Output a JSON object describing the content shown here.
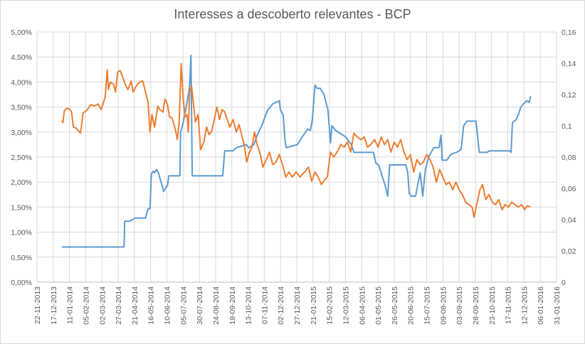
{
  "chart_data": {
    "type": "line",
    "title": "Interesses a descoberto relevantes - BCP",
    "y_left": {
      "ticks": [
        "0,00%",
        "0,50%",
        "1,00%",
        "1,50%",
        "2,00%",
        "2,50%",
        "3,00%",
        "3,50%",
        "4,00%",
        "4,50%",
        "5,00%"
      ],
      "range": [
        0,
        5
      ]
    },
    "y_right": {
      "ticks": [
        "0",
        "0,02",
        "0,04",
        "0,06",
        "0,08",
        "0,1",
        "0,12",
        "0,14",
        "0,16"
      ],
      "range": [
        0,
        0.16
      ]
    },
    "x_ticks": [
      "22-11-2013",
      "17-12-2013",
      "11-01-2014",
      "05-02-2014",
      "02-03-2014",
      "27-03-2014",
      "21-04-2014",
      "16-05-2014",
      "10-06-2014",
      "05-07-2014",
      "30-07-2014",
      "24-08-2014",
      "18-09-2014",
      "13-10-2014",
      "07-11-2014",
      "02-12-2014",
      "27-12-2014",
      "21-01-2015",
      "15-02-2015",
      "12-03-2015",
      "06-04-2015",
      "01-05-2015",
      "26-05-2015",
      "20-06-2015",
      "15-07-2015",
      "09-08-2015",
      "03-09-2015",
      "28-09-2015",
      "23-10-2015",
      "17-11-2015",
      "12-12-2015",
      "06-01-2016",
      "31-01-2016"
    ],
    "grid": true,
    "series": [
      {
        "axis": "right",
        "color": "#5b9bd5",
        "points": [
          [
            "2013-12-30",
            0.0225
          ],
          [
            "2014-04-05",
            0.0225
          ],
          [
            "2014-04-06",
            0.039
          ],
          [
            "2014-04-14",
            0.039
          ],
          [
            "2014-04-22",
            0.041
          ],
          [
            "2014-05-08",
            0.041
          ],
          [
            "2014-05-12",
            0.047
          ],
          [
            "2014-05-15",
            0.047
          ],
          [
            "2014-05-17",
            0.069
          ],
          [
            "2014-05-20",
            0.071
          ],
          [
            "2014-05-22",
            0.07
          ],
          [
            "2014-05-25",
            0.072
          ],
          [
            "2014-05-28",
            0.07
          ],
          [
            "2014-06-01",
            0.064
          ],
          [
            "2014-06-05",
            0.058
          ],
          [
            "2014-06-11",
            0.062
          ],
          [
            "2014-06-13",
            0.068
          ],
          [
            "2014-06-30",
            0.068
          ],
          [
            "2014-07-01",
            0.096
          ],
          [
            "2014-07-04",
            0.1
          ],
          [
            "2014-07-09",
            0.11
          ],
          [
            "2014-07-15",
            0.125
          ],
          [
            "2014-07-17",
            0.145
          ],
          [
            "2014-07-19",
            0.068
          ],
          [
            "2014-09-04",
            0.068
          ],
          [
            "2014-09-07",
            0.084
          ],
          [
            "2014-09-20",
            0.084
          ],
          [
            "2014-09-25",
            0.086
          ],
          [
            "2014-10-10",
            0.088
          ],
          [
            "2014-10-14",
            0.086
          ],
          [
            "2014-10-22",
            0.088
          ],
          [
            "2014-10-27",
            0.094
          ],
          [
            "2014-11-03",
            0.1
          ],
          [
            "2014-11-12",
            0.11
          ],
          [
            "2014-11-20",
            0.114
          ],
          [
            "2014-11-30",
            0.116
          ],
          [
            "2014-12-02",
            0.11
          ],
          [
            "2014-12-06",
            0.107
          ],
          [
            "2014-12-09",
            0.09
          ],
          [
            "2014-12-11",
            0.086
          ],
          [
            "2014-12-20",
            0.087
          ],
          [
            "2014-12-28",
            0.088
          ],
          [
            "2015-01-03",
            0.092
          ],
          [
            "2015-01-08",
            0.095
          ],
          [
            "2015-01-13",
            0.098
          ],
          [
            "2015-01-17",
            0.097
          ],
          [
            "2015-01-20",
            0.104
          ],
          [
            "2015-01-24",
            0.126
          ],
          [
            "2015-01-27",
            0.124
          ],
          [
            "2015-02-01",
            0.124
          ],
          [
            "2015-02-07",
            0.12
          ],
          [
            "2015-02-13",
            0.11
          ],
          [
            "2015-02-15",
            0.1
          ],
          [
            "2015-02-17",
            0.089
          ],
          [
            "2015-02-19",
            0.1
          ],
          [
            "2015-02-25",
            0.097
          ],
          [
            "2015-03-12",
            0.093
          ],
          [
            "2015-03-21",
            0.088
          ],
          [
            "2015-03-25",
            0.083
          ],
          [
            "2015-04-24",
            0.083
          ],
          [
            "2015-04-28",
            0.076
          ],
          [
            "2015-05-02",
            0.075
          ],
          [
            "2015-05-12",
            0.062
          ],
          [
            "2015-05-16",
            0.055
          ],
          [
            "2015-05-19",
            0.075
          ],
          [
            "2015-06-13",
            0.075
          ],
          [
            "2015-06-16",
            0.07
          ],
          [
            "2015-06-18",
            0.057
          ],
          [
            "2015-06-21",
            0.055
          ],
          [
            "2015-06-28",
            0.055
          ],
          [
            "2015-07-02",
            0.064
          ],
          [
            "2015-07-05",
            0.07
          ],
          [
            "2015-07-09",
            0.055
          ],
          [
            "2015-07-13",
            0.072
          ],
          [
            "2015-07-18",
            0.08
          ],
          [
            "2015-07-26",
            0.086
          ],
          [
            "2015-08-03",
            0.086
          ],
          [
            "2015-08-06",
            0.094
          ],
          [
            "2015-08-08",
            0.078
          ],
          [
            "2015-08-15",
            0.078
          ],
          [
            "2015-08-22",
            0.082
          ],
          [
            "2015-08-30",
            0.083
          ],
          [
            "2015-09-06",
            0.085
          ],
          [
            "2015-09-10",
            0.1
          ],
          [
            "2015-09-15",
            0.103
          ],
          [
            "2015-09-29",
            0.103
          ],
          [
            "2015-10-04",
            0.083
          ],
          [
            "2015-10-16",
            0.083
          ],
          [
            "2015-10-20",
            0.084
          ],
          [
            "2015-11-20",
            0.084
          ],
          [
            "2015-11-22",
            0.083
          ],
          [
            "2015-11-24",
            0.102
          ],
          [
            "2015-11-30",
            0.104
          ],
          [
            "2015-12-04",
            0.108
          ],
          [
            "2015-12-07",
            0.112
          ],
          [
            "2015-12-11",
            0.114
          ],
          [
            "2015-12-16",
            0.116
          ],
          [
            "2015-12-20",
            0.115
          ],
          [
            "2015-12-22",
            0.119
          ]
        ]
      },
      {
        "axis": "left",
        "color": "#ed7d31",
        "points": [
          [
            "2013-12-30",
            3.22
          ],
          [
            "2014-01-01",
            3.19
          ],
          [
            "2014-01-03",
            3.42
          ],
          [
            "2014-01-06",
            3.47
          ],
          [
            "2014-01-10",
            3.47
          ],
          [
            "2014-01-14",
            3.41
          ],
          [
            "2014-01-17",
            3.1
          ],
          [
            "2014-01-21",
            3.08
          ],
          [
            "2014-01-25",
            3.02
          ],
          [
            "2014-01-28",
            2.98
          ],
          [
            "2014-02-01",
            3.38
          ],
          [
            "2014-02-07",
            3.44
          ],
          [
            "2014-02-13",
            3.55
          ],
          [
            "2014-02-18",
            3.52
          ],
          [
            "2014-02-24",
            3.56
          ],
          [
            "2014-03-01",
            3.45
          ],
          [
            "2014-03-07",
            3.7
          ],
          [
            "2014-03-10",
            4.24
          ],
          [
            "2014-03-12",
            3.85
          ],
          [
            "2014-03-15",
            4.0
          ],
          [
            "2014-03-20",
            3.95
          ],
          [
            "2014-03-23",
            3.8
          ],
          [
            "2014-03-26",
            4.2
          ],
          [
            "2014-03-30",
            4.23
          ],
          [
            "2014-04-03",
            4.1
          ],
          [
            "2014-04-07",
            3.95
          ],
          [
            "2014-04-11",
            3.85
          ],
          [
            "2014-04-16",
            4.02
          ],
          [
            "2014-04-19",
            3.8
          ],
          [
            "2014-04-24",
            3.92
          ],
          [
            "2014-04-29",
            4.0
          ],
          [
            "2014-05-04",
            4.02
          ],
          [
            "2014-05-08",
            3.8
          ],
          [
            "2014-05-12",
            3.6
          ],
          [
            "2014-05-15",
            3.0
          ],
          [
            "2014-05-18",
            3.35
          ],
          [
            "2014-05-22",
            3.1
          ],
          [
            "2014-05-27",
            3.52
          ],
          [
            "2014-05-30",
            3.45
          ],
          [
            "2014-06-04",
            3.4
          ],
          [
            "2014-06-07",
            3.66
          ],
          [
            "2014-06-11",
            3.55
          ],
          [
            "2014-06-14",
            3.3
          ],
          [
            "2014-06-18",
            3.28
          ],
          [
            "2014-06-23",
            3.05
          ],
          [
            "2014-06-26",
            2.85
          ],
          [
            "2014-06-29",
            3.2
          ],
          [
            "2014-07-02",
            4.37
          ],
          [
            "2014-07-05",
            3.7
          ],
          [
            "2014-07-08",
            3.3
          ],
          [
            "2014-07-11",
            3.35
          ],
          [
            "2014-07-13",
            3.0
          ],
          [
            "2014-07-15",
            3.8
          ],
          [
            "2014-07-18",
            3.92
          ],
          [
            "2014-07-21",
            3.55
          ],
          [
            "2014-07-24",
            3.2
          ],
          [
            "2014-07-28",
            3.35
          ],
          [
            "2014-08-01",
            2.65
          ],
          [
            "2014-08-06",
            2.8
          ],
          [
            "2014-08-10",
            3.1
          ],
          [
            "2014-08-14",
            2.95
          ],
          [
            "2014-08-18",
            3.02
          ],
          [
            "2014-08-22",
            3.25
          ],
          [
            "2014-08-26",
            3.5
          ],
          [
            "2014-08-30",
            3.25
          ],
          [
            "2014-09-03",
            3.45
          ],
          [
            "2014-09-07",
            3.4
          ],
          [
            "2014-09-11",
            3.25
          ],
          [
            "2014-09-15",
            3.1
          ],
          [
            "2014-09-20",
            3.25
          ],
          [
            "2014-09-25",
            3.0
          ],
          [
            "2014-09-29",
            3.15
          ],
          [
            "2014-10-03",
            2.95
          ],
          [
            "2014-10-07",
            2.75
          ],
          [
            "2014-10-11",
            2.4
          ],
          [
            "2014-10-15",
            2.6
          ],
          [
            "2014-10-19",
            2.7
          ],
          [
            "2014-10-23",
            3.0
          ],
          [
            "2014-10-27",
            2.75
          ],
          [
            "2014-10-31",
            2.6
          ],
          [
            "2014-11-05",
            2.3
          ],
          [
            "2014-11-10",
            2.45
          ],
          [
            "2014-11-15",
            2.6
          ],
          [
            "2014-11-20",
            2.35
          ],
          [
            "2014-11-25",
            2.4
          ],
          [
            "2014-11-30",
            2.55
          ],
          [
            "2014-12-05",
            2.35
          ],
          [
            "2014-12-10",
            2.1
          ],
          [
            "2014-12-15",
            2.2
          ],
          [
            "2014-12-20",
            2.1
          ],
          [
            "2014-12-26",
            2.2
          ],
          [
            "2015-01-01",
            2.1
          ],
          [
            "2015-01-08",
            2.2
          ],
          [
            "2015-01-14",
            2.3
          ],
          [
            "2015-01-19",
            2.02
          ],
          [
            "2015-01-24",
            2.2
          ],
          [
            "2015-01-29",
            2.1
          ],
          [
            "2015-02-03",
            1.95
          ],
          [
            "2015-02-08",
            2.05
          ],
          [
            "2015-02-12",
            2.1
          ],
          [
            "2015-02-17",
            2.6
          ],
          [
            "2015-02-22",
            2.5
          ],
          [
            "2015-02-27",
            2.6
          ],
          [
            "2015-03-05",
            2.75
          ],
          [
            "2015-03-10",
            2.7
          ],
          [
            "2015-03-15",
            2.8
          ],
          [
            "2015-03-20",
            2.6
          ],
          [
            "2015-03-25",
            2.98
          ],
          [
            "2015-03-30",
            2.9
          ],
          [
            "2015-04-05",
            2.85
          ],
          [
            "2015-04-10",
            2.9
          ],
          [
            "2015-04-15",
            2.7
          ],
          [
            "2015-04-20",
            2.75
          ],
          [
            "2015-04-26",
            2.85
          ],
          [
            "2015-05-01",
            2.7
          ],
          [
            "2015-05-06",
            2.9
          ],
          [
            "2015-05-11",
            2.75
          ],
          [
            "2015-05-16",
            2.85
          ],
          [
            "2015-05-21",
            2.6
          ],
          [
            "2015-05-26",
            2.8
          ],
          [
            "2015-05-31",
            2.7
          ],
          [
            "2015-06-05",
            2.85
          ],
          [
            "2015-06-10",
            2.6
          ],
          [
            "2015-06-15",
            2.45
          ],
          [
            "2015-06-20",
            2.55
          ],
          [
            "2015-06-25",
            2.2
          ],
          [
            "2015-06-30",
            2.45
          ],
          [
            "2015-07-05",
            2.35
          ],
          [
            "2015-07-10",
            2.4
          ],
          [
            "2015-07-15",
            2.55
          ],
          [
            "2015-07-20",
            2.45
          ],
          [
            "2015-07-25",
            2.3
          ],
          [
            "2015-07-30",
            2.0
          ],
          [
            "2015-08-04",
            2.25
          ],
          [
            "2015-08-09",
            2.1
          ],
          [
            "2015-08-14",
            1.95
          ],
          [
            "2015-08-19",
            2.0
          ],
          [
            "2015-08-24",
            1.85
          ],
          [
            "2015-08-29",
            2.0
          ],
          [
            "2015-09-03",
            1.85
          ],
          [
            "2015-09-08",
            1.75
          ],
          [
            "2015-09-13",
            1.6
          ],
          [
            "2015-09-18",
            1.55
          ],
          [
            "2015-09-23",
            1.5
          ],
          [
            "2015-09-26",
            1.3
          ],
          [
            "2015-09-30",
            1.55
          ],
          [
            "2015-10-05",
            1.85
          ],
          [
            "2015-10-09",
            1.95
          ],
          [
            "2015-10-14",
            1.65
          ],
          [
            "2015-10-19",
            1.75
          ],
          [
            "2015-10-24",
            1.6
          ],
          [
            "2015-10-29",
            1.55
          ],
          [
            "2015-11-03",
            1.65
          ],
          [
            "2015-11-08",
            1.45
          ],
          [
            "2015-11-13",
            1.55
          ],
          [
            "2015-11-18",
            1.5
          ],
          [
            "2015-11-23",
            1.6
          ],
          [
            "2015-11-28",
            1.55
          ],
          [
            "2015-12-03",
            1.5
          ],
          [
            "2015-12-08",
            1.55
          ],
          [
            "2015-12-13",
            1.45
          ],
          [
            "2015-12-16",
            1.52
          ],
          [
            "2015-12-22",
            1.51
          ]
        ]
      }
    ]
  }
}
